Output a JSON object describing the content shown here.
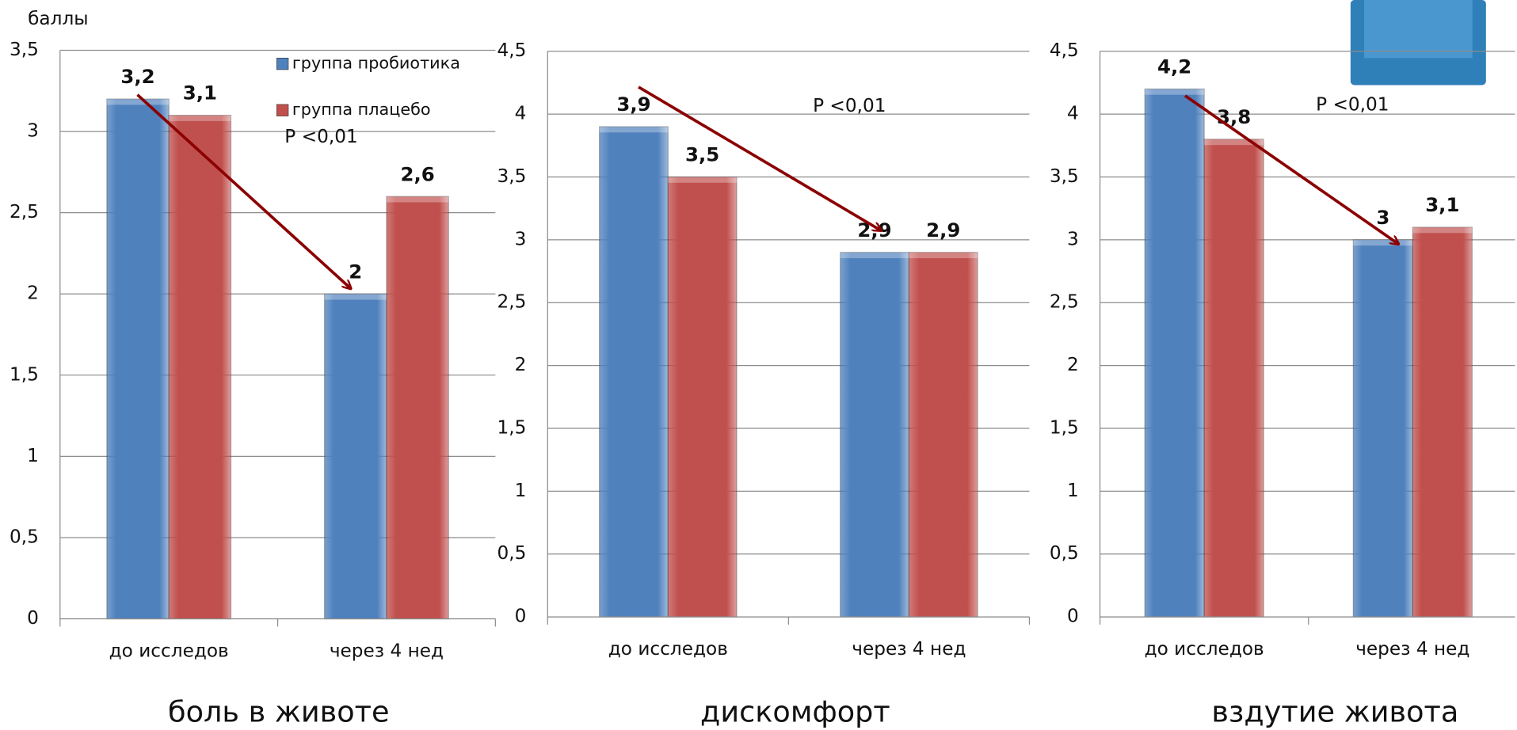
{
  "chart_data": [
    {
      "type": "bar",
      "title": "боль в животе",
      "y_label": "баллы",
      "annotation": "P <0,01",
      "categories": [
        "до исследов",
        "через 4 нед"
      ],
      "series": [
        {
          "name": "группа пробиотика",
          "color": "#4f81bd",
          "values": [
            3.2,
            2
          ],
          "value_labels": [
            "3,2",
            "2"
          ]
        },
        {
          "name": "группа плацебо",
          "color": "#c0504d",
          "values": [
            3.1,
            2.6
          ],
          "value_labels": [
            "3,1",
            "2,6"
          ]
        }
      ],
      "ylim": [
        0,
        3.5
      ],
      "yticks": [
        0,
        {
          "value": 0.5,
          "label": "0,5"
        },
        1,
        {
          "value": 1.5,
          "label": "1,5"
        },
        2,
        {
          "value": 2.5,
          "label": "2,5"
        },
        3,
        {
          "value": 3.5,
          "label": "3,5"
        }
      ],
      "grid": true,
      "legend": "top-right"
    },
    {
      "type": "bar",
      "title": "дискомфорт",
      "annotation": "P <0,01",
      "categories": [
        "до исследов",
        "через 4 нед"
      ],
      "series": [
        {
          "color": "#4f81bd",
          "values": [
            3.9,
            2.9
          ],
          "value_labels": [
            "3,9",
            "2,9"
          ]
        },
        {
          "color": "#c0504d",
          "values": [
            3.5,
            2.9
          ],
          "value_labels": [
            "3,5",
            "2,9"
          ]
        }
      ],
      "ylim": [
        0,
        4.5
      ],
      "yticks": [
        0,
        {
          "value": 0.5,
          "label": "0,5"
        },
        1,
        {
          "value": 1.5,
          "label": "1,5"
        },
        2,
        {
          "value": 2.5,
          "label": "2,5"
        },
        3,
        {
          "value": 3.5,
          "label": "3,5"
        },
        4,
        {
          "value": 4.5,
          "label": "4,5"
        }
      ],
      "grid": true
    },
    {
      "type": "bar",
      "title": "вздутие живота",
      "annotation": "P <0,01",
      "categories": [
        "до исследов",
        "через 4 нед"
      ],
      "series": [
        {
          "color": "#4f81bd",
          "values": [
            4.2,
            3
          ],
          "value_labels": [
            "4,2",
            "3"
          ]
        },
        {
          "color": "#c0504d",
          "values": [
            3.8,
            3.1
          ],
          "value_labels": [
            "3,8",
            "3,1"
          ]
        }
      ],
      "ylim": [
        0,
        4.5
      ],
      "yticks": [
        0,
        {
          "value": 0.5,
          "label": "0,5"
        },
        1,
        {
          "value": 1.5,
          "label": "1,5"
        },
        2,
        {
          "value": 2.5,
          "label": "2,5"
        },
        3,
        {
          "value": 3.5,
          "label": "3,5"
        },
        4,
        {
          "value": 4.5,
          "label": "4,5"
        }
      ],
      "grid": true
    }
  ]
}
